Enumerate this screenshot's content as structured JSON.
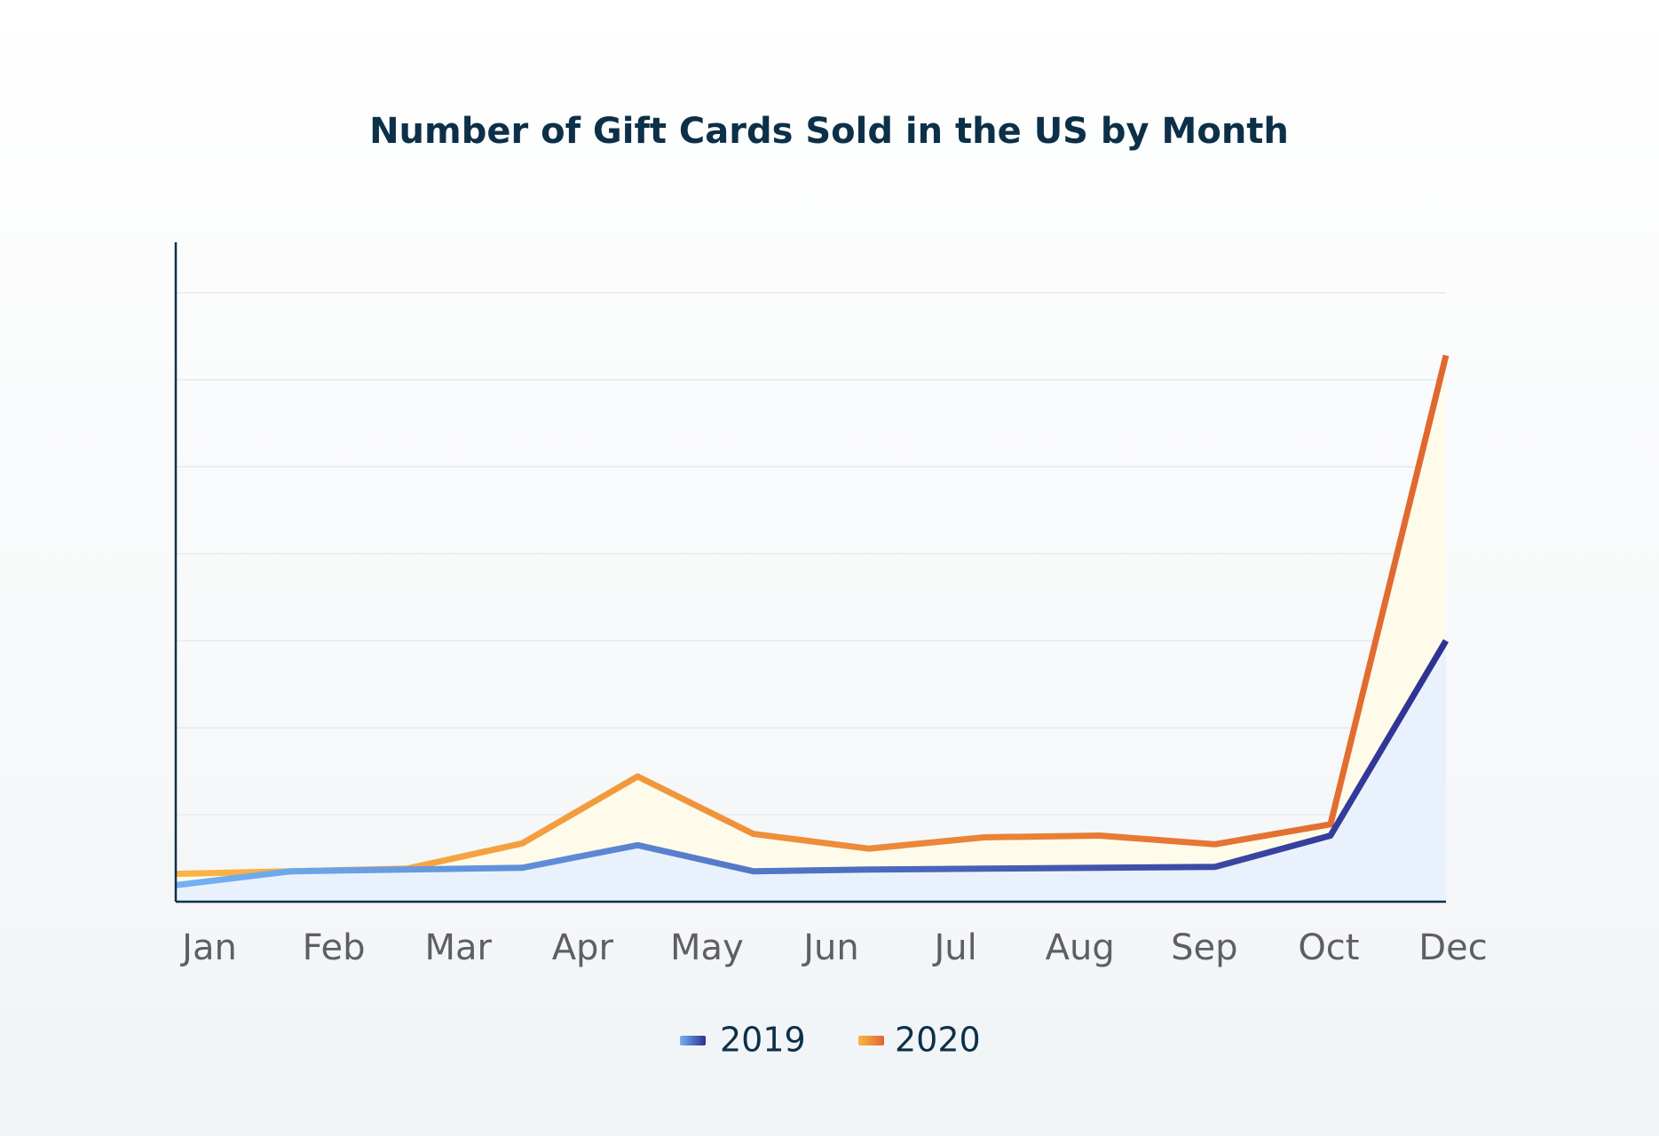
{
  "chart_data": {
    "type": "line",
    "title": "Number of Gift Cards Sold in the US by Month",
    "categories": [
      "Jan",
      "Feb",
      "Mar",
      "Apr",
      "May",
      "Jun",
      "Jul",
      "Aug",
      "Sep",
      "Oct",
      null,
      "Dec"
    ],
    "series": [
      {
        "name": "2019",
        "color": [
          "#72b2f3",
          "#2e3192"
        ],
        "fill": "#e9f2fc",
        "values": [
          0.19,
          0.35,
          0.37,
          0.39,
          0.65,
          0.35,
          0.37,
          0.38,
          0.39,
          0.4,
          0.76,
          3.0
        ]
      },
      {
        "name": "2020",
        "color": [
          "#fbb445",
          "#e0672f"
        ],
        "fill": "#fffbea",
        "values": [
          0.32,
          0.35,
          0.38,
          0.67,
          1.44,
          0.78,
          0.61,
          0.74,
          0.76,
          0.66,
          0.89,
          6.28
        ]
      }
    ],
    "ylim": [
      0,
      7.58
    ],
    "yticks": [
      1,
      2,
      3,
      4,
      5,
      6,
      7
    ],
    "grid": true
  }
}
